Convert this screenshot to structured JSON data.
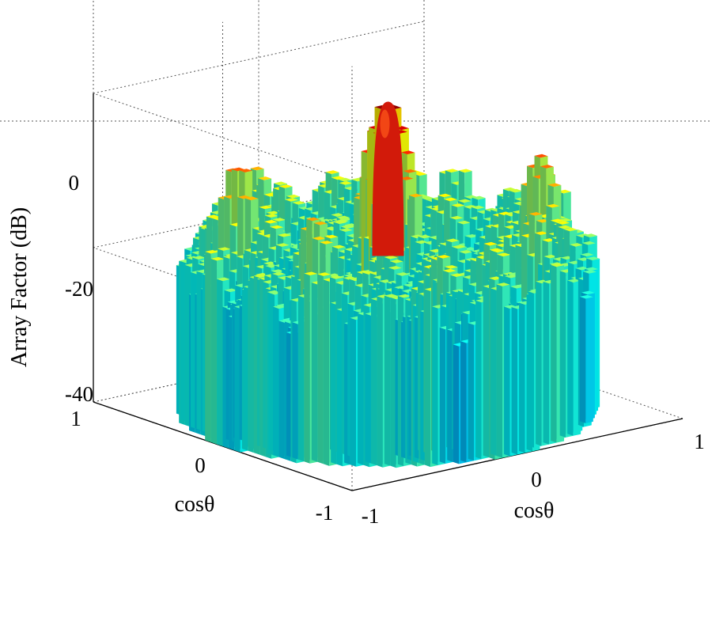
{
  "chart_data": {
    "type": "surface",
    "colormap": "jet",
    "zlabel": "Array Factor (dB)",
    "xlabel": "cosθ",
    "ylabel": "cosθ",
    "xlim": [
      -1,
      1
    ],
    "ylim": [
      -1,
      1
    ],
    "zlim": [
      -40,
      0
    ],
    "grid": true,
    "x_ticks": [
      "-1",
      "0",
      "1"
    ],
    "y_ticks": [
      "1",
      "0",
      "-1"
    ],
    "z_ticks": [
      "0",
      "-20",
      "-40"
    ],
    "main_lobe": {
      "x": 0,
      "y": 0,
      "peak_db": 0
    },
    "prominent_sidelobes": [
      {
        "x": -0.55,
        "y": 0.45,
        "level_db": -8
      },
      {
        "x": 0.65,
        "y": -0.35,
        "level_db": -8
      },
      {
        "x": -0.6,
        "y": -0.2,
        "level_db": -11
      },
      {
        "x": 0.35,
        "y": -0.7,
        "level_db": -12
      },
      {
        "x": -0.2,
        "y": 0.75,
        "level_db": -12
      },
      {
        "x": 0.55,
        "y": 0.5,
        "level_db": -14
      }
    ],
    "sidelobe_floor_db": -15,
    "surface_extent": "circular, radius 1"
  }
}
